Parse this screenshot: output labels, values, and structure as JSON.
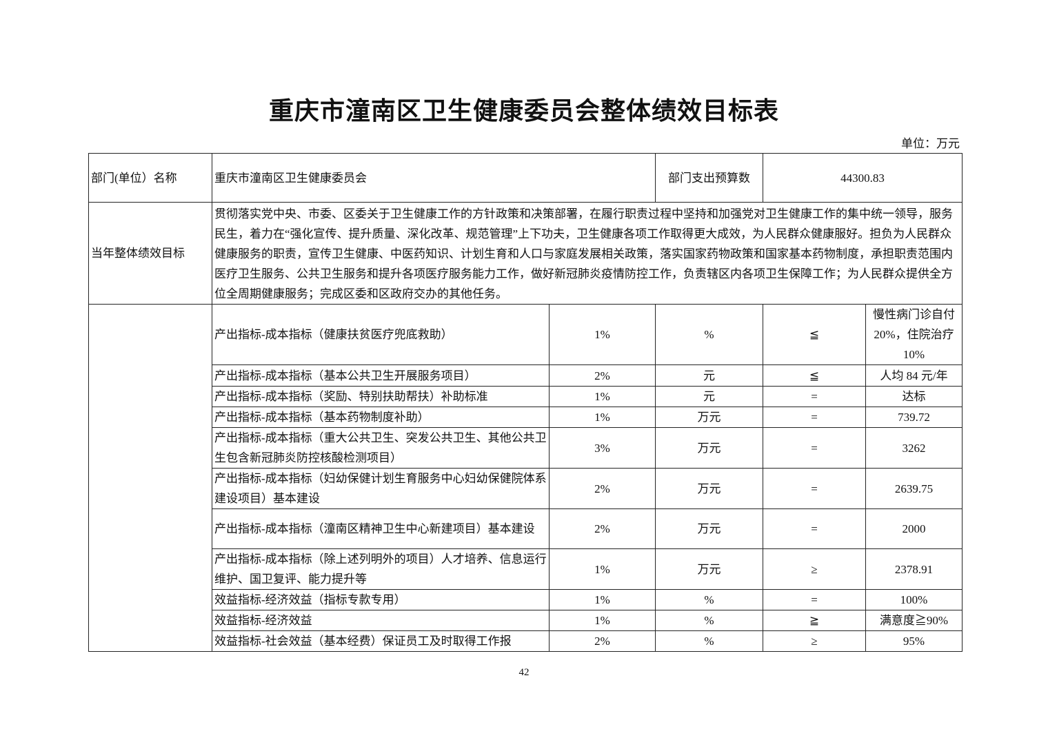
{
  "title": "重庆市潼南区卫生健康委员会整体绩效目标表",
  "unit": "单位：万元",
  "header": {
    "dept_label": "部门(单位）名称",
    "dept_name": "重庆市潼南区卫生健康委员会",
    "budget_label": "部门支出预算数",
    "budget_value": "44300.83"
  },
  "goal": {
    "label": "当年整体绩效目标",
    "text": "贯彻落实党中央、市委、区委关于卫生健康工作的方针政策和决策部署，在履行职责过程中坚持和加强党对卫生健康工作的集中统一领导，服务民生，着力在“强化宣传、提升质量、深化改革、规范管理”上下功夫，卫生健康各项工作取得更大成效，为人民群众健康服好。担负为人民群众健康服务的职责，宣传卫生健康、中医药知识、计划生育和人口与家庭发展相关政策，落实国家药物政策和国家基本药物制度，承担职责范围内医疗卫生服务、公共卫生服务和提升各项医疗服务能力工作，做好新冠肺炎疫情防控工作，负责辖区内各项卫生保障工作；为人民群众提供全方位全周期健康服务；完成区委和区政府交办的其他任务。"
  },
  "indicators": [
    {
      "name": "产出指标-成本指标（健康扶贫医疗兜底救助）",
      "weight": "1%",
      "unit": "%",
      "op": "≦",
      "target": "慢性病门诊自付20%，住院治疗10%"
    },
    {
      "name": "产出指标-成本指标（基本公共卫生开展服务项目）",
      "weight": "2%",
      "unit": "元",
      "op": "≦",
      "target": "人均 84 元/年"
    },
    {
      "name": "产出指标-成本指标（奖励、特别扶助帮扶）补助标准",
      "weight": "1%",
      "unit": "元",
      "op": "=",
      "target": "达标"
    },
    {
      "name": "产出指标-成本指标（基本药物制度补助）",
      "weight": "1%",
      "unit": "万元",
      "op": "=",
      "target": "739.72"
    },
    {
      "name": "产出指标-成本指标（重大公共卫生、突发公共卫生、其他公共卫生包含新冠肺炎防控核酸检测项目）",
      "weight": "3%",
      "unit": "万元",
      "op": "=",
      "target": "3262"
    },
    {
      "name": "产出指标-成本指标（妇幼保健计划生育服务中心妇幼保健院体系建设项目）基本建设",
      "weight": "2%",
      "unit": "万元",
      "op": "=",
      "target": "2639.75"
    },
    {
      "name": "产出指标-成本指标（潼南区精神卫生中心新建项目）基本建设",
      "weight": "2%",
      "unit": "万元",
      "op": "=",
      "target": "2000"
    },
    {
      "name": "产出指标-成本指标（除上述列明外的项目）人才培养、信息运行维护、国卫复评、能力提升等",
      "weight": "1%",
      "unit": "万元",
      "op": "≥",
      "target": "2378.91"
    },
    {
      "name": "效益指标-经济效益（指标专款专用）",
      "weight": "1%",
      "unit": "%",
      "op": "=",
      "target": "100%"
    },
    {
      "name": "效益指标-经济效益",
      "weight": "1%",
      "unit": "%",
      "op": "≧",
      "target": "满意度≧90%"
    },
    {
      "name": "效益指标-社会效益（基本经费）保证员工及时取得工作报",
      "weight": "2%",
      "unit": "%",
      "op": "≥",
      "target": "95%"
    }
  ],
  "page_number": "42"
}
